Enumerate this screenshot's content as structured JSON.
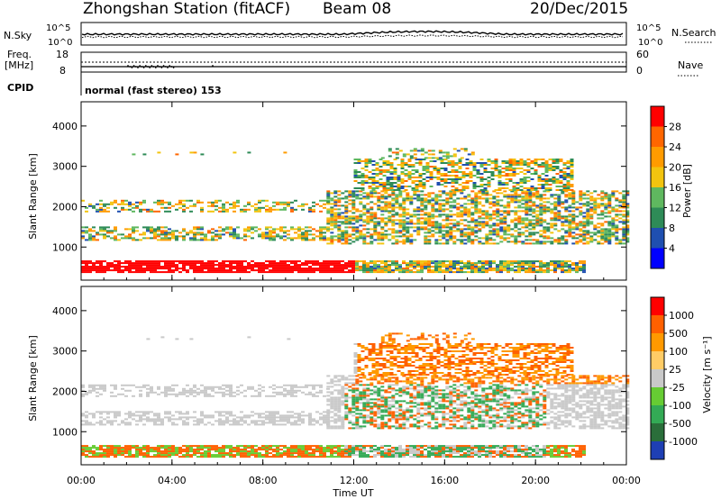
{
  "header": {
    "station": "Zhongshan Station (fitACF)",
    "beam": "Beam 08",
    "date": "20/Dec/2015"
  },
  "strip": {
    "nsky_label": "N.Sky",
    "nsky_ticks": [
      "10^5",
      "10^0"
    ],
    "nsearch_label": "N.Search",
    "freq_label_1": "Freq.",
    "freq_label_2": "[MHz]",
    "freq_ticks": [
      "18",
      "8"
    ],
    "nave_ticks": [
      "60",
      "0"
    ],
    "nave_label": "Nave",
    "cpid_label": "CPID",
    "cpid_text": "normal (fast stereo) 153"
  },
  "colors": {
    "power_scale": [
      "#0000ff",
      "#1f4fb0",
      "#2e8b57",
      "#5fb85f",
      "#f2c40f",
      "#ff9b00",
      "#ff6600",
      "#ff0000"
    ],
    "velocity_scale": [
      "#ff0000",
      "#ff6000",
      "#ff9900",
      "#ffcc66",
      "#c9c9c9",
      "#66cc33",
      "#33aa55",
      "#2a6e3a",
      "#1e3fb4"
    ]
  },
  "chart_data": [
    {
      "type": "heatmap",
      "name": "power-panel",
      "ylabel": "Slant Range [km]",
      "yticks": [
        "1000",
        "2000",
        "3000",
        "4000"
      ],
      "ylim": [
        180,
        4600
      ],
      "colorbar_label": "Power [dB]",
      "colorbar_ticks": [
        "4",
        "8",
        "12",
        "16",
        "20",
        "24",
        "28"
      ]
    },
    {
      "type": "heatmap",
      "name": "velocity-panel",
      "ylabel": "Slant Range [km]",
      "yticks": [
        "1000",
        "2000",
        "3000",
        "4000"
      ],
      "ylim": [
        180,
        4600
      ],
      "colorbar_label": "Velocity [m s⁻¹]",
      "colorbar_ticks": [
        "1000",
        "500",
        "100",
        "25",
        "-25",
        "-100",
        "-500",
        "-1000"
      ]
    }
  ],
  "xaxis": {
    "label": "Time UT",
    "ticks": [
      "00:00",
      "04:00",
      "08:00",
      "12:00",
      "16:00",
      "20:00",
      "00:00"
    ]
  }
}
